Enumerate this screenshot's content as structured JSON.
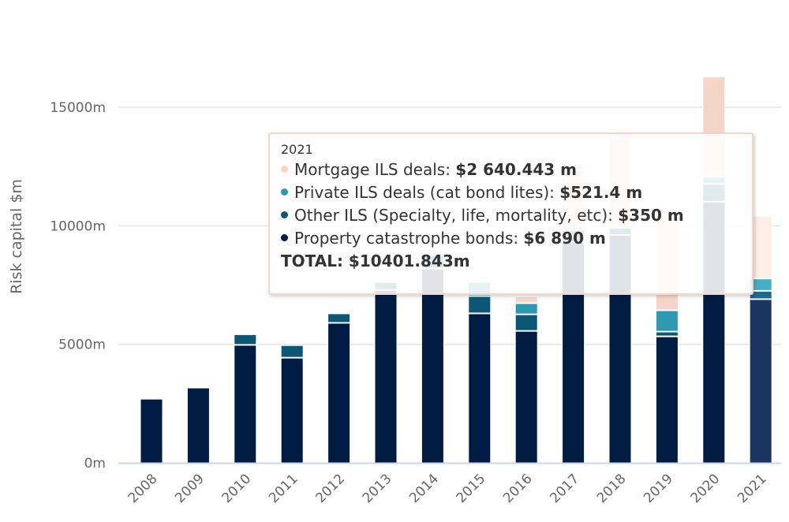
{
  "chart_data": {
    "type": "bar",
    "stacked": true,
    "title": "",
    "xlabel": "",
    "ylabel": "Risk capital $m",
    "ylim": [
      0,
      17000
    ],
    "yticks": [
      0,
      5000,
      10000,
      15000
    ],
    "ytick_labels": [
      "0m",
      "5000m",
      "10000m",
      "15000m"
    ],
    "grid": true,
    "categories": [
      "2008",
      "2009",
      "2010",
      "2011",
      "2012",
      "2013",
      "2014",
      "2015",
      "2016",
      "2017",
      "2018",
      "2019",
      "2020",
      "2021"
    ],
    "series": [
      {
        "name": "Property catastrophe bonds",
        "color": "#001c42",
        "values": [
          2690,
          3160,
          4960,
          4420,
          5890,
          7280,
          8180,
          6290,
          5550,
          9300,
          9600,
          5320,
          11000,
          6890
        ]
      },
      {
        "name": "Other ILS (Specialty, life, mortality, etc)",
        "color": "#0c5676",
        "values": [
          0,
          0,
          450,
          530,
          400,
          330,
          570,
          730,
          700,
          500,
          300,
          200,
          750,
          350
        ]
      },
      {
        "name": "Private ILS deals (cat bond lites)",
        "color": "#2e98b0",
        "values": [
          0,
          0,
          0,
          0,
          0,
          0,
          0,
          600,
          470,
          0,
          0,
          900,
          300,
          521.4
        ]
      },
      {
        "name": "Mortgage ILS deals",
        "color": "#f5d5c8",
        "values": [
          0,
          0,
          0,
          0,
          0,
          0,
          0,
          0,
          280,
          2800,
          3950,
          4250,
          4230,
          2640.443
        ]
      }
    ],
    "highlighted_category": "2021"
  },
  "tooltip": {
    "header": "2021",
    "rows": [
      {
        "label": "Mortgage ILS deals: ",
        "value": "$2 640.443 m",
        "color": "#f5d5c8"
      },
      {
        "label": "Private ILS deals (cat bond lites): ",
        "value": "$521.4 m",
        "color": "#2e98b0"
      },
      {
        "label": "Other ILS (Specialty, life, mortality, etc): ",
        "value": "$350 m",
        "color": "#0c5676"
      },
      {
        "label": "Property catastrophe bonds: ",
        "value": "$6 890 m",
        "color": "#001c42"
      }
    ],
    "total": "TOTAL: $10401.843m"
  }
}
